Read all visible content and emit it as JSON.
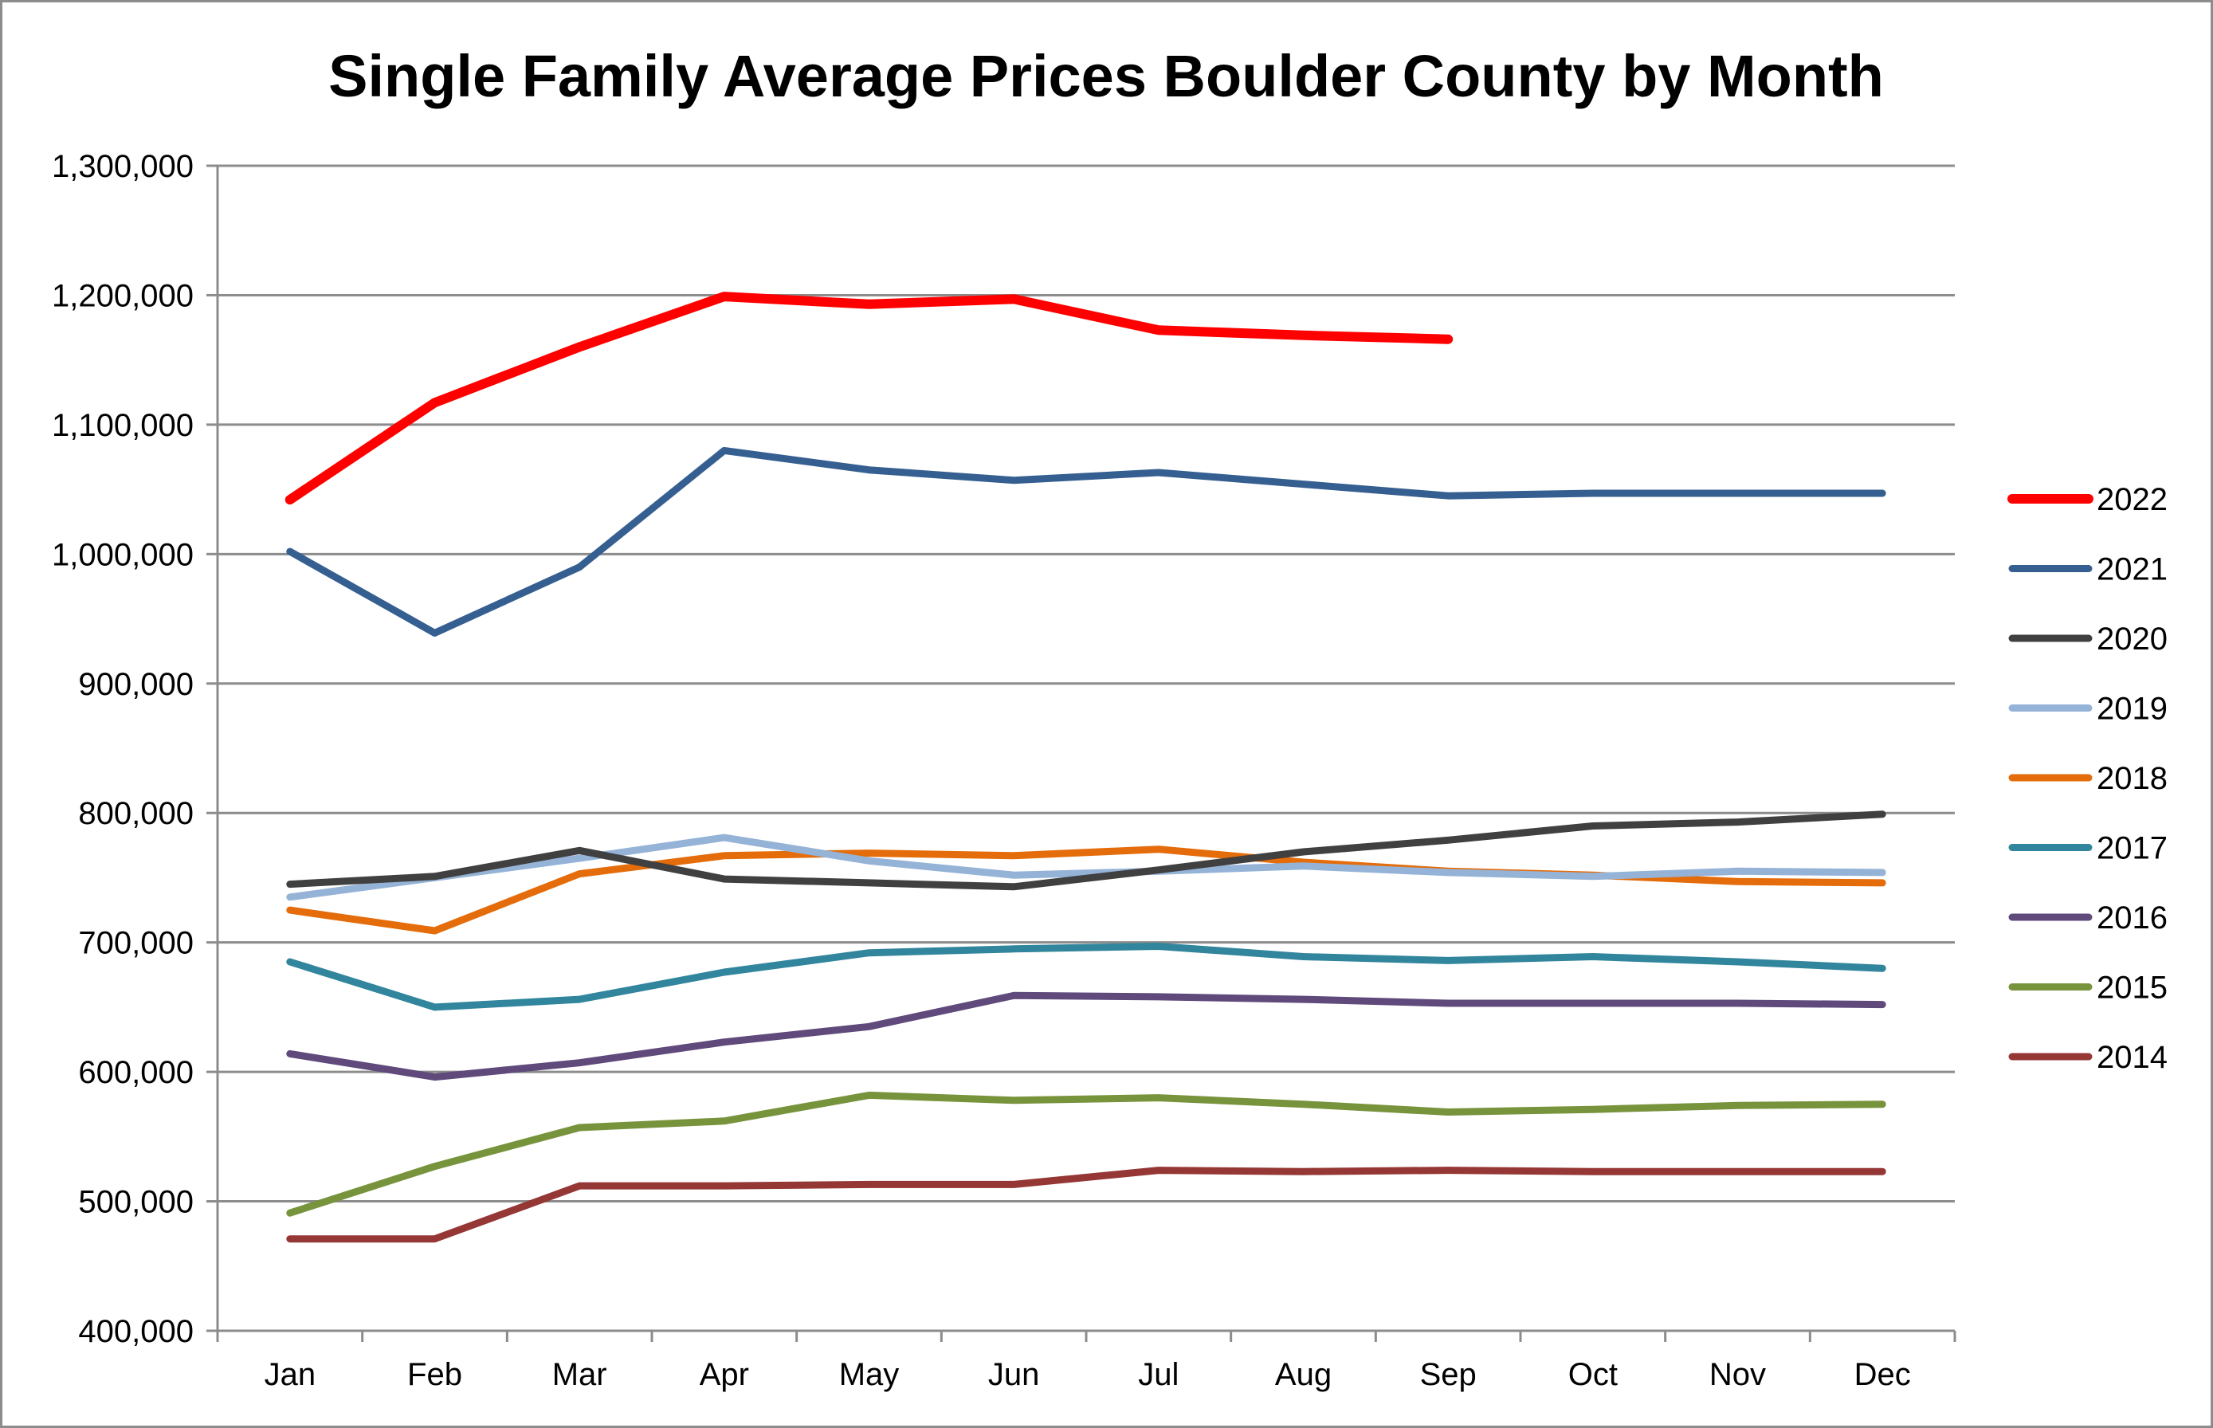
{
  "chart_data": {
    "type": "line",
    "title": "Single Family Average Prices Boulder County by Month",
    "xlabel": "",
    "ylabel": "",
    "ylim": [
      400000,
      1300000
    ],
    "yticks": [
      400000,
      500000,
      600000,
      700000,
      800000,
      900000,
      1000000,
      1100000,
      1200000,
      1300000
    ],
    "ytick_labels": [
      "400,000",
      "500,000",
      "600,000",
      "700,000",
      "800,000",
      "900,000",
      "1,000,000",
      "1,100,000",
      "1,200,000",
      "1,300,000"
    ],
    "grid": true,
    "legend_position": "right",
    "categories": [
      "Jan",
      "Feb",
      "Mar",
      "Apr",
      "May",
      "Jun",
      "Jul",
      "Aug",
      "Sep",
      "Oct",
      "Nov",
      "Dec"
    ],
    "series": [
      {
        "name": "2022",
        "color": "#ff0000",
        "values": [
          1042000,
          1117000,
          1160000,
          1199000,
          1193000,
          1197000,
          1173000,
          1169000,
          1166000,
          null,
          null,
          null
        ]
      },
      {
        "name": "2021",
        "color": "#365f91",
        "values": [
          1002000,
          939000,
          990000,
          1080000,
          1065000,
          1057000,
          1063000,
          1054000,
          1045000,
          1047000,
          1047000,
          1047000
        ]
      },
      {
        "name": "2020",
        "color": "#404040",
        "values": [
          745000,
          751000,
          771000,
          749000,
          746000,
          743000,
          756000,
          770000,
          779000,
          790000,
          793000,
          799000
        ]
      },
      {
        "name": "2019",
        "color": "#95b3d7",
        "values": [
          735000,
          750000,
          765000,
          781000,
          763000,
          752000,
          755000,
          759000,
          754000,
          751000,
          755000,
          754000
        ]
      },
      {
        "name": "2018",
        "color": "#e46c0a",
        "values": [
          725000,
          709000,
          753000,
          767000,
          769000,
          767000,
          772000,
          762000,
          755000,
          752000,
          747000,
          746000
        ]
      },
      {
        "name": "2017",
        "color": "#31859c",
        "values": [
          685000,
          650000,
          656000,
          677000,
          692000,
          695000,
          697000,
          689000,
          686000,
          689000,
          685000,
          680000
        ]
      },
      {
        "name": "2016",
        "color": "#604a7b",
        "values": [
          614000,
          596000,
          607000,
          623000,
          635000,
          659000,
          658000,
          656000,
          653000,
          653000,
          653000,
          652000
        ]
      },
      {
        "name": "2015",
        "color": "#77933c",
        "values": [
          491000,
          527000,
          557000,
          562000,
          582000,
          578000,
          580000,
          575000,
          569000,
          571000,
          574000,
          575000
        ]
      },
      {
        "name": "2014",
        "color": "#953735",
        "values": [
          471000,
          471000,
          512000,
          512000,
          513000,
          513000,
          524000,
          523000,
          524000,
          523000,
          523000,
          523000
        ]
      }
    ]
  }
}
